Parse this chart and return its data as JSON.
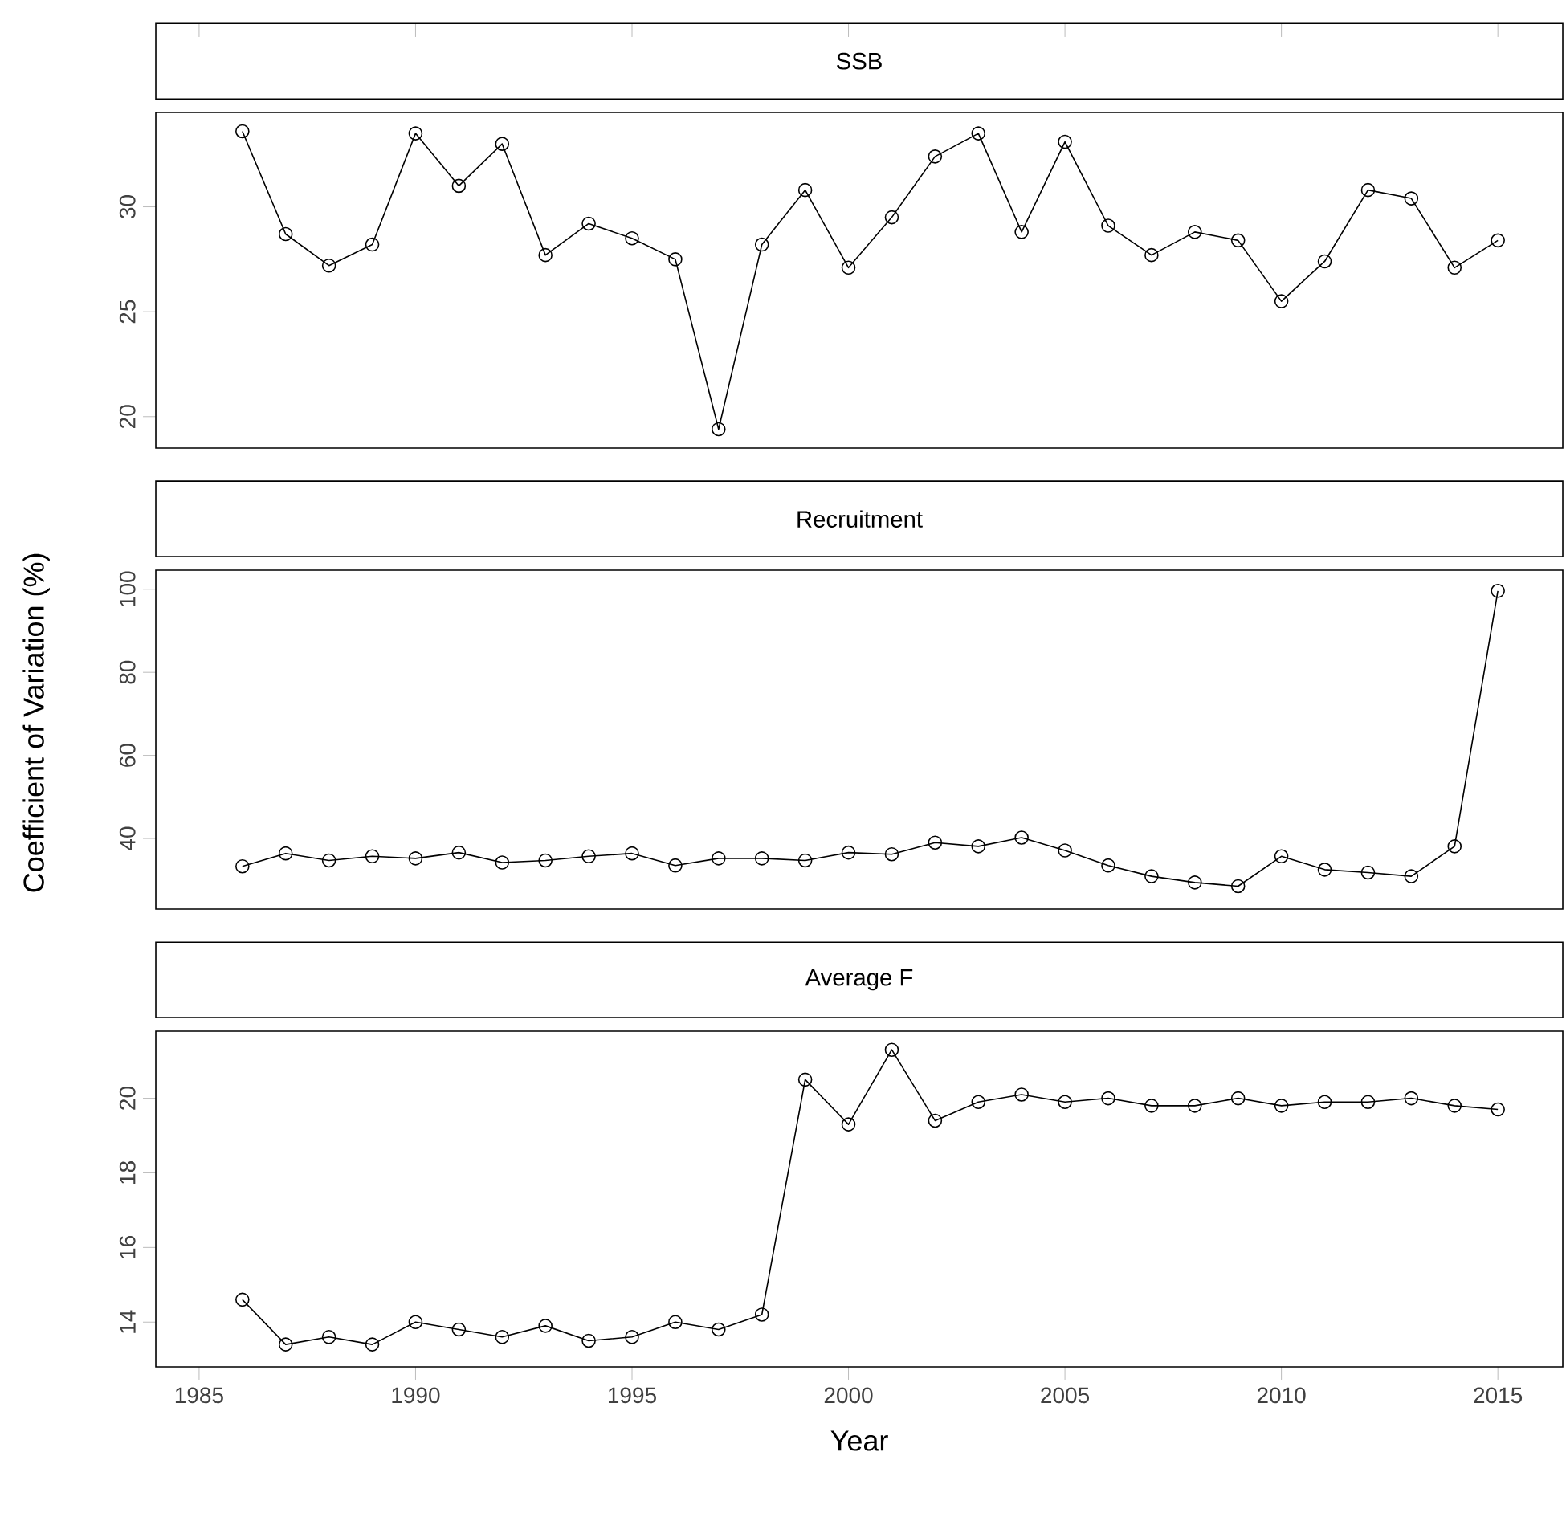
{
  "chart_data": [
    {
      "type": "line",
      "title": "SSB",
      "x": [
        1986,
        1987,
        1988,
        1989,
        1990,
        1991,
        1992,
        1993,
        1994,
        1995,
        1996,
        1997,
        1998,
        1999,
        2000,
        2001,
        2002,
        2003,
        2004,
        2005,
        2006,
        2007,
        2008,
        2009,
        2010,
        2011,
        2012,
        2013,
        2014,
        2015
      ],
      "values": [
        33.6,
        28.7,
        27.2,
        28.2,
        33.5,
        31.0,
        33.0,
        27.7,
        29.2,
        28.5,
        27.5,
        19.4,
        28.2,
        30.8,
        27.1,
        29.5,
        32.4,
        33.5,
        28.8,
        33.1,
        29.1,
        27.7,
        28.8,
        28.4,
        25.5,
        27.4,
        30.8,
        30.4,
        27.1,
        28.4
      ],
      "color": "#000000",
      "marker": "circle",
      "line_style": "solid",
      "xlim": [
        1984,
        2016.5
      ],
      "xticks": [
        1985,
        1990,
        1995,
        2000,
        2005,
        2010,
        2015
      ],
      "ylim": [
        18.5,
        34.5
      ],
      "yticks": [
        20,
        25,
        30
      ],
      "tick_labels": "y"
    },
    {
      "type": "line",
      "title": "Recruitment",
      "ylabel": "Coefficient of Variation (%)",
      "x": [
        1986,
        1987,
        1988,
        1989,
        1990,
        1991,
        1992,
        1993,
        1994,
        1995,
        1996,
        1997,
        1998,
        1999,
        2000,
        2001,
        2002,
        2003,
        2004,
        2005,
        2006,
        2007,
        2008,
        2009,
        2010,
        2011,
        2012,
        2013,
        2014,
        2015
      ],
      "values": [
        33.3,
        36.4,
        34.7,
        35.7,
        35.2,
        36.6,
        34.2,
        34.7,
        35.7,
        36.4,
        33.5,
        35.2,
        35.2,
        34.7,
        36.6,
        36.2,
        39.0,
        38.1,
        40.2,
        37.1,
        33.5,
        30.9,
        29.4,
        28.5,
        35.7,
        32.5,
        31.8,
        30.9,
        38.1,
        99.6
      ],
      "color": "#000000",
      "marker": "circle",
      "line_style": "solid",
      "xlim": [
        1984,
        2016.5
      ],
      "xticks": [
        1985,
        1990,
        1995,
        2000,
        2005,
        2010,
        2015
      ],
      "ylim": [
        23,
        104.6
      ],
      "yticks": [
        40,
        60,
        80,
        100
      ],
      "tick_labels": "y"
    },
    {
      "type": "line",
      "title": "Average F",
      "xlabel": "Year",
      "x": [
        1986,
        1987,
        1988,
        1989,
        1990,
        1991,
        1992,
        1993,
        1994,
        1995,
        1996,
        1997,
        1998,
        1999,
        2000,
        2001,
        2002,
        2003,
        2004,
        2005,
        2006,
        2007,
        2008,
        2009,
        2010,
        2011,
        2012,
        2013,
        2014,
        2015
      ],
      "values": [
        14.6,
        13.4,
        13.6,
        13.4,
        14.0,
        13.8,
        13.6,
        13.9,
        13.5,
        13.6,
        14.0,
        13.8,
        14.2,
        20.5,
        19.3,
        21.3,
        19.4,
        19.9,
        20.1,
        19.9,
        20.0,
        19.8,
        19.8,
        20.0,
        19.8,
        19.9,
        19.9,
        20.0,
        19.8,
        19.7
      ],
      "color": "#000000",
      "marker": "circle",
      "line_style": "solid",
      "xlim": [
        1984,
        2016.5
      ],
      "xticks": [
        1985,
        1990,
        1995,
        2000,
        2005,
        2010,
        2015
      ],
      "ylim": [
        12.8,
        21.8
      ],
      "yticks": [
        14,
        16,
        18,
        20
      ]
    }
  ]
}
